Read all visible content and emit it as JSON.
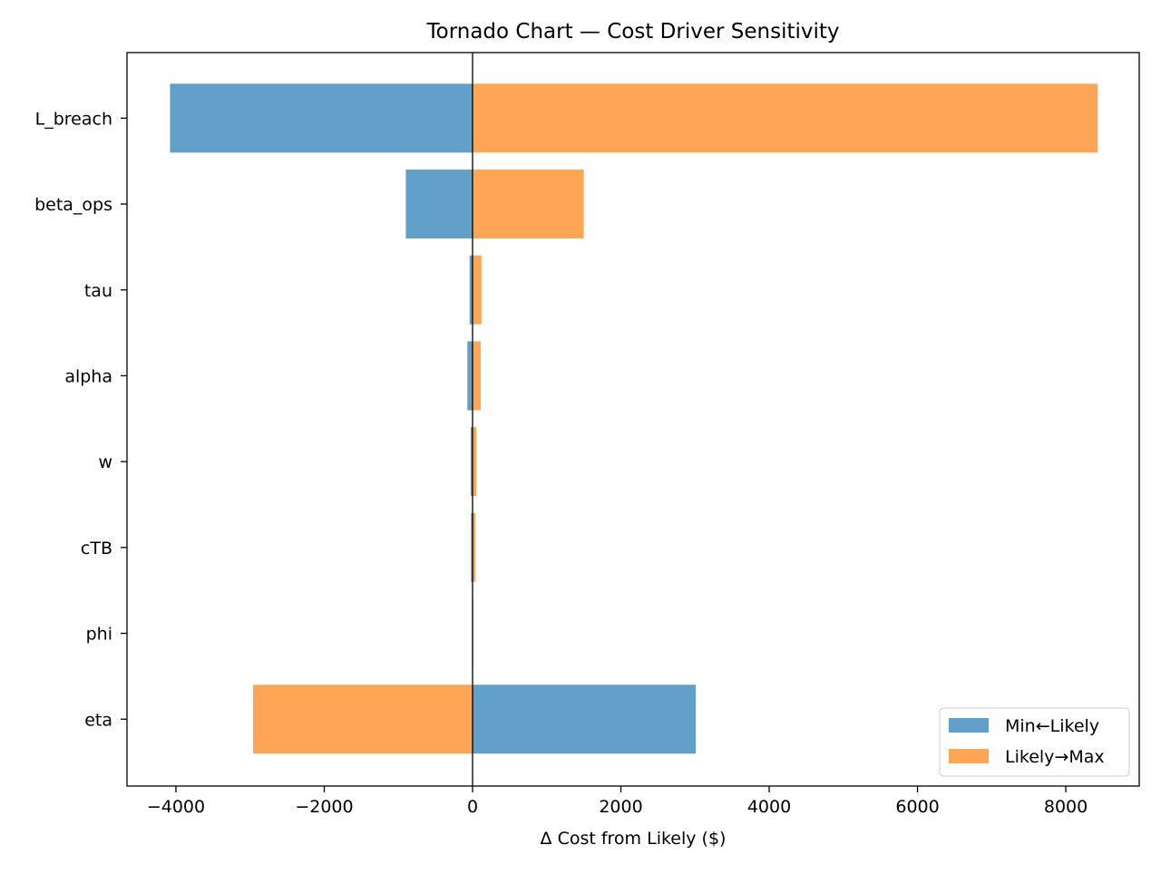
{
  "chart_data": {
    "type": "bar",
    "orientation": "horizontal",
    "title": "Tornado Chart — Cost Driver Sensitivity",
    "xlabel": "Δ Cost from Likely ($)",
    "ylabel": "",
    "xlim": [
      -4660,
      8990
    ],
    "xticks": [
      -4000,
      -2000,
      0,
      2000,
      4000,
      6000,
      8000
    ],
    "xtick_labels": [
      "−4000",
      "−2000",
      "0",
      "2000",
      "4000",
      "6000",
      "8000"
    ],
    "categories": [
      "L_breach",
      "beta_ops",
      "tau",
      "alpha",
      "w",
      "cTB",
      "phi",
      "eta"
    ],
    "series": [
      {
        "name": "Min←Likely",
        "color": "#62a0ca",
        "values": [
          -4080,
          -900,
          -40,
          -70,
          -25,
          -20,
          -5,
          3010
        ]
      },
      {
        "name": "Likely→Max",
        "color": "#ffa656",
        "values": [
          8430,
          1500,
          120,
          110,
          50,
          40,
          10,
          -2960
        ]
      }
    ],
    "legend": {
      "placement": "lower-right",
      "entries": [
        "Min←Likely",
        "Likely→Max"
      ]
    },
    "reference_line": 0,
    "grid": false
  }
}
